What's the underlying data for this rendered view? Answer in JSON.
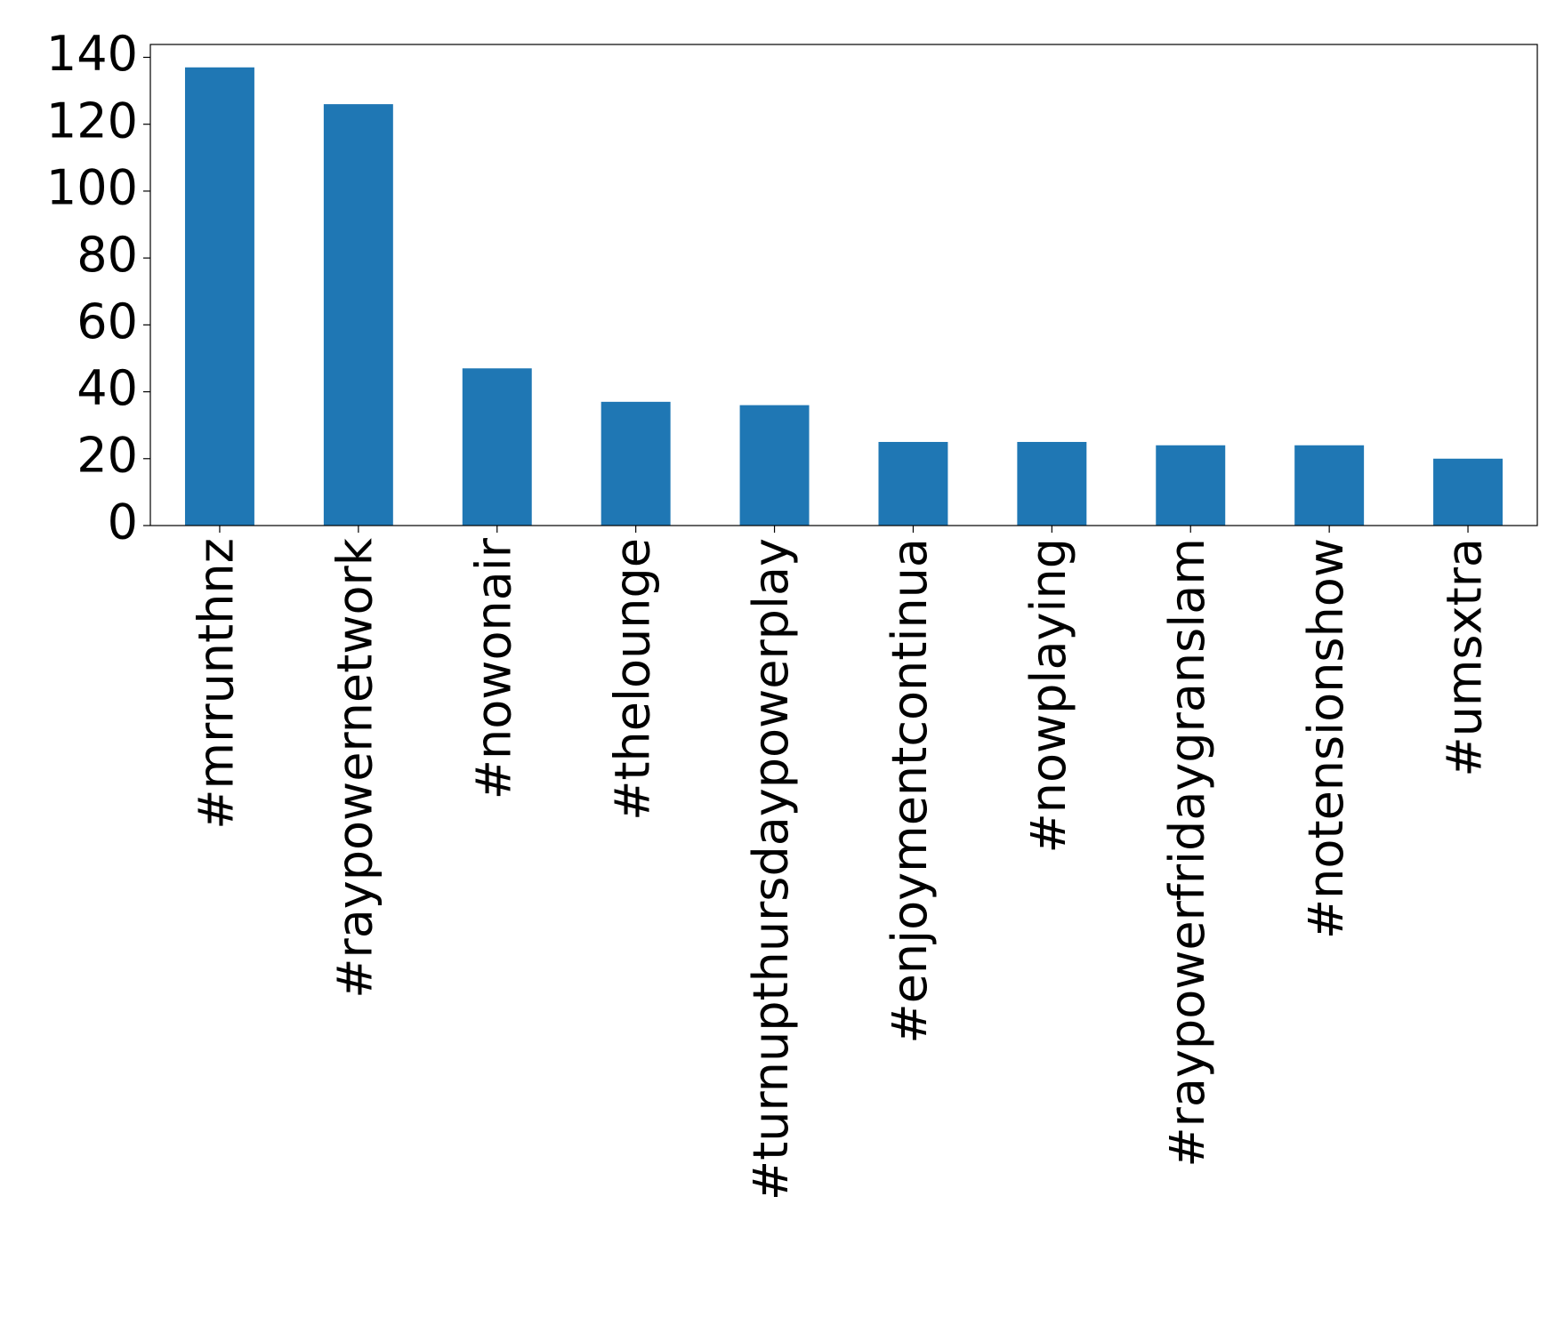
{
  "chart_data": {
    "type": "bar",
    "categories": [
      "#mrrunthnz",
      "#raypowernetwork",
      "#nowonair",
      "#thelounge",
      "#turnupthursdaypowerplay",
      "#enjoymentcontinua",
      "#nowplaying",
      "#raypowerfridaygranslam",
      "#notensionshow",
      "#umsxtra"
    ],
    "values": [
      137,
      126,
      47,
      37,
      36,
      25,
      25,
      24,
      24,
      20
    ],
    "color": "#1f77b4",
    "ylim": [
      0,
      143.85
    ],
    "yticks": [
      0,
      20,
      40,
      60,
      80,
      100,
      120,
      140
    ],
    "grid": false
  }
}
